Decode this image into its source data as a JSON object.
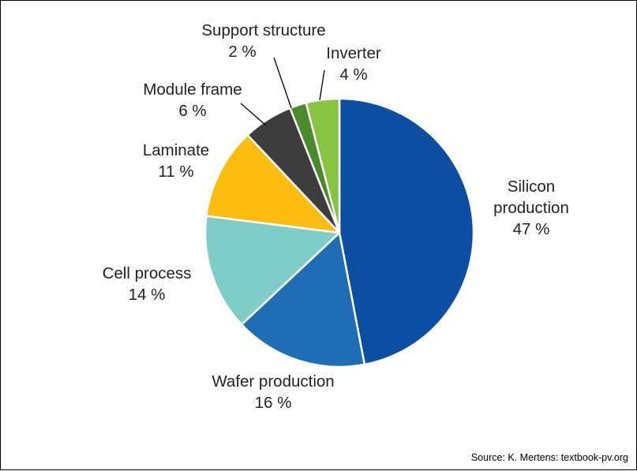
{
  "chart_data": {
    "type": "pie",
    "title": "",
    "start_angle_deg": 0,
    "direction": "clockwise",
    "slice_stroke": "#ffffff",
    "slices": [
      {
        "label_lines": [
          "Silicon",
          "production"
        ],
        "value_label": "47 %",
        "value": 47,
        "color": "#0b4ea2"
      },
      {
        "label_lines": [
          "Wafer production"
        ],
        "value_label": "16 %",
        "value": 16,
        "color": "#1f6db5"
      },
      {
        "label_lines": [
          "Cell process"
        ],
        "value_label": "14 %",
        "value": 14,
        "color": "#7ecdc8"
      },
      {
        "label_lines": [
          "Laminate"
        ],
        "value_label": "11 %",
        "value": 11,
        "color": "#fdbd0f"
      },
      {
        "label_lines": [
          "Module frame"
        ],
        "value_label": "6 %",
        "value": 6,
        "color": "#3d3d3d"
      },
      {
        "label_lines": [
          "Support structure"
        ],
        "value_label": "2 %",
        "value": 2,
        "color": "#4a8a2c"
      },
      {
        "label_lines": [
          "Inverter"
        ],
        "value_label": "4 %",
        "value": 4,
        "color": "#86c441"
      }
    ]
  },
  "source_text": "Source: K. Mertens: textbook-pv.org"
}
